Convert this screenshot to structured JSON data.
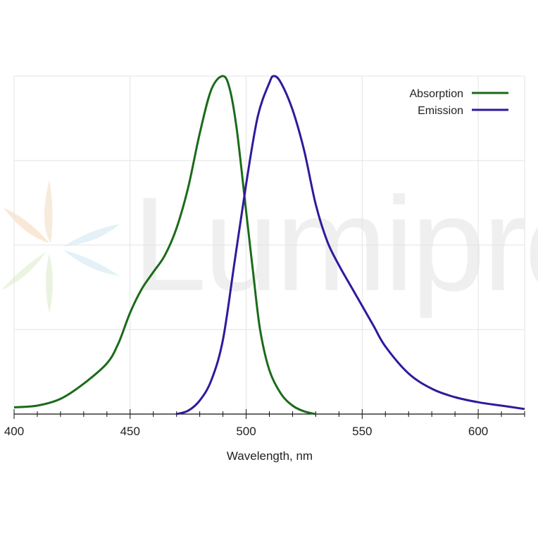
{
  "chart_data": {
    "type": "line",
    "xlabel": "Wavelength, nm",
    "xlim": [
      400,
      620
    ],
    "ylim": [
      0,
      1
    ],
    "x_ticks": [
      400,
      450,
      500,
      550,
      600
    ],
    "grid": true,
    "legend_position": "top-right",
    "series": [
      {
        "name": "Absorption",
        "color": "#1a6b1a",
        "points": [
          [
            400,
            0.02
          ],
          [
            410,
            0.025
          ],
          [
            420,
            0.045
          ],
          [
            430,
            0.09
          ],
          [
            440,
            0.15
          ],
          [
            445,
            0.21
          ],
          [
            450,
            0.3
          ],
          [
            455,
            0.37
          ],
          [
            460,
            0.42
          ],
          [
            465,
            0.47
          ],
          [
            470,
            0.55
          ],
          [
            475,
            0.67
          ],
          [
            480,
            0.83
          ],
          [
            485,
            0.96
          ],
          [
            490,
            1.0
          ],
          [
            493,
            0.96
          ],
          [
            496,
            0.84
          ],
          [
            500,
            0.6
          ],
          [
            503,
            0.42
          ],
          [
            506,
            0.25
          ],
          [
            510,
            0.13
          ],
          [
            515,
            0.06
          ],
          [
            520,
            0.025
          ],
          [
            525,
            0.008
          ],
          [
            530,
            0.0
          ]
        ]
      },
      {
        "name": "Emission",
        "color": "#2e1a9c",
        "points": [
          [
            470,
            0.0
          ],
          [
            475,
            0.01
          ],
          [
            480,
            0.04
          ],
          [
            485,
            0.1
          ],
          [
            490,
            0.22
          ],
          [
            495,
            0.45
          ],
          [
            500,
            0.68
          ],
          [
            505,
            0.88
          ],
          [
            510,
            0.98
          ],
          [
            512,
            1.0
          ],
          [
            515,
            0.98
          ],
          [
            520,
            0.9
          ],
          [
            525,
            0.78
          ],
          [
            530,
            0.62
          ],
          [
            535,
            0.51
          ],
          [
            540,
            0.44
          ],
          [
            545,
            0.38
          ],
          [
            550,
            0.32
          ],
          [
            555,
            0.26
          ],
          [
            560,
            0.2
          ],
          [
            570,
            0.12
          ],
          [
            580,
            0.075
          ],
          [
            590,
            0.05
          ],
          [
            600,
            0.035
          ],
          [
            610,
            0.025
          ],
          [
            620,
            0.015
          ]
        ]
      }
    ]
  },
  "watermark": {
    "text": "Lumiprobe"
  }
}
